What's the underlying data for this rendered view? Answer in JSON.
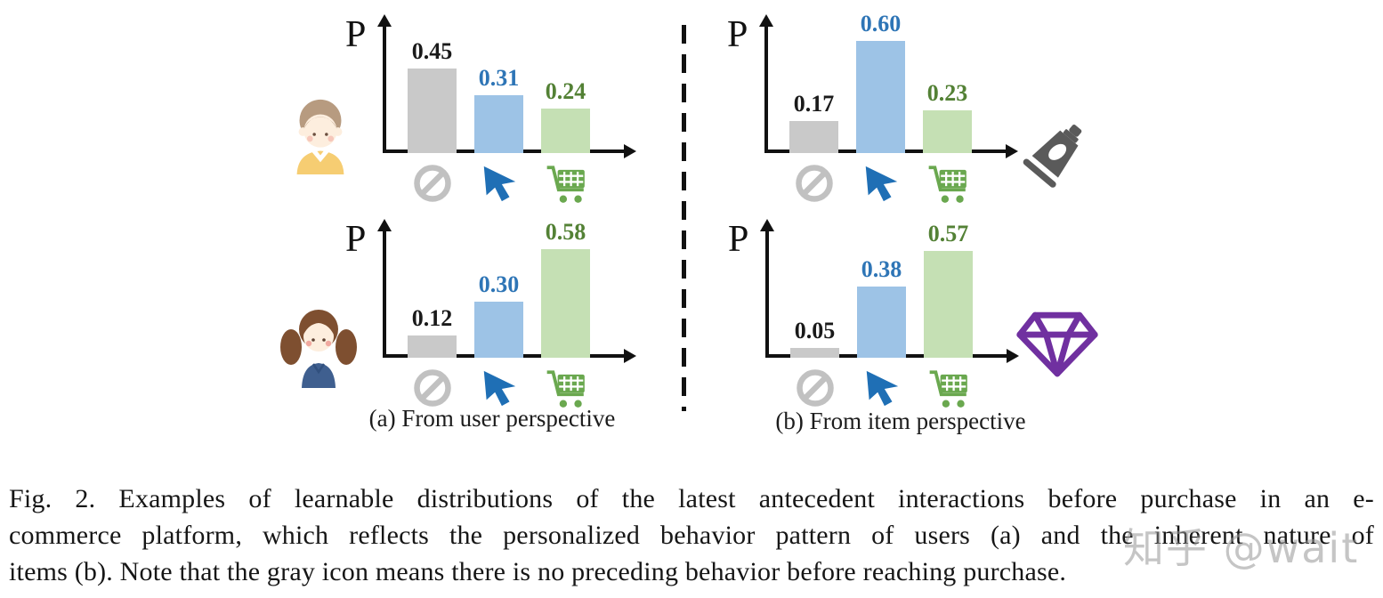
{
  "figure": {
    "axis_label": "P",
    "subcaptions": {
      "a": "(a) From user perspective",
      "b": "(b) From item perspective"
    },
    "caption_lines": [
      "Fig. 2.  Examples of learnable distributions of the latest antecedent interactions before purchase in an e-",
      "commerce platform, which reflects the personalized behavior pattern of users (a) and the inherent nature of",
      "items (b). Note that the gray icon means there is no preceding behavior before reaching purchase."
    ],
    "watermark": "知乎 @wait"
  },
  "palette": {
    "bar_colors": [
      "#c9c9c9",
      "#9dc3e6",
      "#c5e0b4"
    ],
    "label_colors": [
      "#1a1a1a",
      "#2e75b6",
      "#538135"
    ],
    "icon_gray": "#c1c1c1",
    "icon_blue": "#1f6fb5",
    "icon_green": "#6aa84f",
    "icon_dark": "#5a5a5a",
    "icon_purple": "#7030a0",
    "axis_color": "#111111"
  },
  "categories": [
    {
      "key": "none",
      "icon": "no-behavior-ban-icon",
      "meaning": "no preceding behavior"
    },
    {
      "key": "click",
      "icon": "click-cursor-icon",
      "meaning": "click / browse"
    },
    {
      "key": "cart",
      "icon": "add-to-cart-icon",
      "meaning": "add to cart"
    }
  ],
  "chart_data": [
    {
      "type": "bar",
      "panel": "a",
      "entity": "user-1",
      "entity_icon": "boy-avatar",
      "ylabel": "P",
      "categories": [
        "no preceding behavior",
        "click",
        "add to cart"
      ],
      "values": [
        0.45,
        0.31,
        0.24
      ],
      "ylim": [
        0,
        0.7
      ]
    },
    {
      "type": "bar",
      "panel": "b",
      "entity": "item-1",
      "entity_icon": "cosmetic-tube",
      "ylabel": "P",
      "categories": [
        "no preceding behavior",
        "click",
        "add to cart"
      ],
      "values": [
        0.17,
        0.6,
        0.23
      ],
      "ylim": [
        0,
        0.7
      ]
    },
    {
      "type": "bar",
      "panel": "a",
      "entity": "user-2",
      "entity_icon": "girl-avatar",
      "ylabel": "P",
      "categories": [
        "no preceding behavior",
        "click",
        "add to cart"
      ],
      "values": [
        0.12,
        0.3,
        0.58
      ],
      "ylim": [
        0,
        0.7
      ]
    },
    {
      "type": "bar",
      "panel": "b",
      "entity": "item-2",
      "entity_icon": "diamond",
      "ylabel": "P",
      "categories": [
        "no preceding behavior",
        "click",
        "add to cart"
      ],
      "values": [
        0.05,
        0.38,
        0.57
      ],
      "ylim": [
        0,
        0.7
      ]
    }
  ]
}
